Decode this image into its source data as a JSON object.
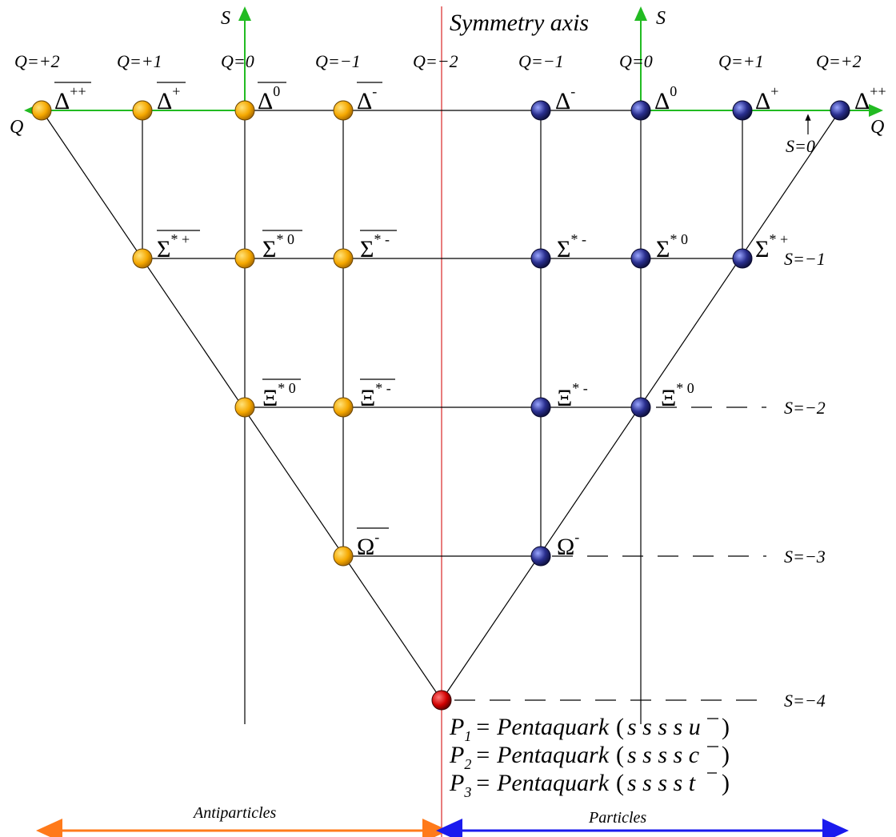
{
  "title": "Symmetry axis",
  "axes": {
    "s_label": "S",
    "q_label": "Q"
  },
  "q_labels_left": [
    "Q=+2",
    "Q=+1",
    "Q=0",
    "Q=−1",
    "Q=−2"
  ],
  "q_labels_right": [
    "Q=−1",
    "Q=0",
    "Q=+1",
    "Q=+2"
  ],
  "s_labels": [
    "S=0",
    "S=−1",
    "S=−2",
    "S=−3",
    "S=−4"
  ],
  "antiparticles": [
    {
      "id": "anti-delta-pp",
      "base": "Δ",
      "sup": "++"
    },
    {
      "id": "anti-delta-p",
      "base": "Δ",
      "sup": "+"
    },
    {
      "id": "anti-delta-0",
      "base": "Δ",
      "sup": "0"
    },
    {
      "id": "anti-delta-m",
      "base": "Δ",
      "sup": "-"
    },
    {
      "id": "anti-sigma-p",
      "base": "Σ",
      "sup": "* +"
    },
    {
      "id": "anti-sigma-0",
      "base": "Σ",
      "sup": "* 0"
    },
    {
      "id": "anti-sigma-m",
      "base": "Σ",
      "sup": "* -"
    },
    {
      "id": "anti-xi-0",
      "base": "Ξ",
      "sup": "* 0"
    },
    {
      "id": "anti-xi-m",
      "base": "Ξ",
      "sup": "* -"
    },
    {
      "id": "anti-omega",
      "base": "Ω",
      "sup": "-"
    }
  ],
  "particles": [
    {
      "id": "delta-m",
      "base": "Δ",
      "sup": "-"
    },
    {
      "id": "delta-0",
      "base": "Δ",
      "sup": "0"
    },
    {
      "id": "delta-p",
      "base": "Δ",
      "sup": "+"
    },
    {
      "id": "delta-pp",
      "base": "Δ",
      "sup": "++"
    },
    {
      "id": "sigma-m",
      "base": "Σ",
      "sup": "* -"
    },
    {
      "id": "sigma-0",
      "base": "Σ",
      "sup": "* 0"
    },
    {
      "id": "sigma-p",
      "base": "Σ",
      "sup": "* +"
    },
    {
      "id": "xi-m",
      "base": "Ξ",
      "sup": "* -"
    },
    {
      "id": "xi-0",
      "base": "Ξ",
      "sup": "* 0"
    },
    {
      "id": "omega",
      "base": "Ω",
      "sup": "-"
    }
  ],
  "pentaquarks": [
    {
      "sym": "P",
      "sub": "1",
      "eq": "= Pentaquark",
      "quarks": "s s s s ",
      "anti": "u"
    },
    {
      "sym": "P",
      "sub": "2",
      "eq": "= Pentaquark",
      "quarks": "s s s s ",
      "anti": "c"
    },
    {
      "sym": "P",
      "sub": "3",
      "eq": "= Pentaquark",
      "quarks": "s s s s ",
      "anti": "t"
    }
  ],
  "bottom": {
    "left_label": "Antiparticles",
    "right_label": "Particles"
  },
  "colors": {
    "antiparticle_node": "#f5a800",
    "particle_node": "#2a2f8f",
    "pentaquark_node": "#d00000",
    "symmetry_axis": "#e05050",
    "axis_green": "#22bb22",
    "arrow_orange": "#ff7a1a",
    "arrow_blue": "#1a1aee"
  }
}
